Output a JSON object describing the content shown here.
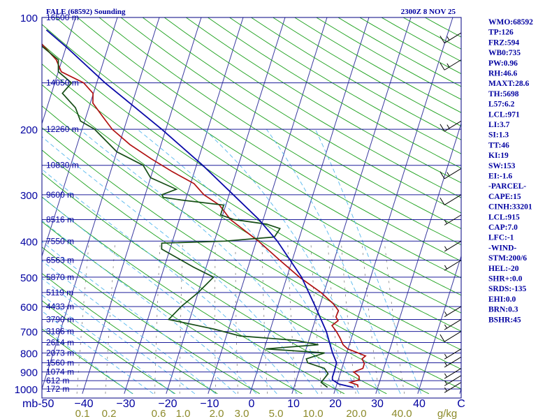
{
  "header": {
    "title": "FALE (68592) Sounding",
    "time": "2300Z  8 NOV 25"
  },
  "colors": {
    "frame": "#000080",
    "isobar": "#1d1d9a",
    "isotherm": "#3a3aa0",
    "dry_adiabat": "#1aa01a",
    "moist_adiabat": "#55b8ee",
    "mixing_ratio": "#808080",
    "temperature": "#b01010",
    "dewpoint": "#154d15",
    "parcel": "#0a0aa8",
    "mixing_ratio_label": "#8c8a2a",
    "wind_barb": "#000000",
    "text": "#0000a0"
  },
  "chart_data": {
    "type": "skew-t log-p sounding",
    "pressure_unit": "mb",
    "temperature_unit": "C",
    "mixing_ratio_unit": "g/kg",
    "xlim": [
      -50,
      50
    ],
    "ylim": [
      1000,
      100
    ],
    "pressure_ticks": [
      100,
      200,
      300,
      400,
      500,
      600,
      700,
      800,
      900,
      1000
    ],
    "temperature_ticks": [
      -50,
      -40,
      -30,
      -20,
      -10,
      0,
      10,
      20,
      30,
      40,
      50
    ],
    "temperature_tick_labels": [
      "mb-50",
      "−40",
      "−30",
      "−20",
      "−10",
      "0",
      "10",
      "20",
      "30",
      "40",
      "C"
    ],
    "mixing_ratio_labels": [
      "0.1",
      "0.2",
      "0.6",
      "1.0",
      "2.0",
      "3.0",
      "5.0",
      "10.0",
      "20.0",
      "40.0",
      "g/kg"
    ],
    "height_labels": [
      {
        "p": 100,
        "text": "16500 m"
      },
      {
        "p": 150,
        "text": "14050 m"
      },
      {
        "p": 200,
        "text": "12260 m"
      },
      {
        "p": 250,
        "text": "10830 m"
      },
      {
        "p": 300,
        "text": "9600 m"
      },
      {
        "p": 350,
        "text": "8516 m"
      },
      {
        "p": 400,
        "text": "7550 m"
      },
      {
        "p": 450,
        "text": "6563 m"
      },
      {
        "p": 500,
        "text": "5870 m"
      },
      {
        "p": 550,
        "text": "5119 m"
      },
      {
        "p": 600,
        "text": "4433 m"
      },
      {
        "p": 650,
        "text": "3790 m"
      },
      {
        "p": 700,
        "text": "3186 m"
      },
      {
        "p": 750,
        "text": "2614 m"
      },
      {
        "p": 800,
        "text": "2073 m"
      },
      {
        "p": 850,
        "text": "1560 m"
      },
      {
        "p": 900,
        "text": "1074 m"
      },
      {
        "p": 950,
        "text": "612 m"
      },
      {
        "p": 1000,
        "text": "172 m"
      }
    ],
    "series": [
      {
        "name": "temperature",
        "points": [
          [
            990,
            25.3
          ],
          [
            975,
            25.0
          ],
          [
            960,
            23.0
          ],
          [
            945,
            25.0
          ],
          [
            925,
            24.7
          ],
          [
            900,
            23.1
          ],
          [
            880,
            25.0
          ],
          [
            855,
            25.0
          ],
          [
            830,
            24.1
          ],
          [
            815,
            24.7
          ],
          [
            800,
            22.7
          ],
          [
            780,
            19.9
          ],
          [
            760,
            18.5
          ],
          [
            730,
            17.3
          ],
          [
            700,
            15.9
          ],
          [
            675,
            14.4
          ],
          [
            655,
            15.5
          ],
          [
            640,
            14.7
          ],
          [
            615,
            14.8
          ],
          [
            590,
            13.1
          ],
          [
            550,
            9.3
          ],
          [
            500,
            3.0
          ],
          [
            450,
            -3.0
          ],
          [
            400,
            -9.5
          ],
          [
            380,
            -12.7
          ],
          [
            350,
            -17.8
          ],
          [
            320,
            -21.5
          ],
          [
            300,
            -26.0
          ],
          [
            280,
            -29.2
          ],
          [
            260,
            -35.3
          ],
          [
            240,
            -41.3
          ],
          [
            220,
            -47.4
          ],
          [
            200,
            -52.8
          ],
          [
            185,
            -56.0
          ],
          [
            170,
            -59.4
          ],
          [
            160,
            -60.1
          ],
          [
            150,
            -63.1
          ],
          [
            140,
            -69.3
          ],
          [
            130,
            -71.4
          ],
          [
            115,
            -77.2
          ],
          [
            106,
            -77.6
          ],
          [
            100,
            -78.1
          ]
        ]
      },
      {
        "name": "dewpoint",
        "points": [
          [
            990,
            18.0
          ],
          [
            960,
            16.1
          ],
          [
            930,
            16.7
          ],
          [
            910,
            17.1
          ],
          [
            880,
            15.8
          ],
          [
            850,
            11.4
          ],
          [
            830,
            10.8
          ],
          [
            800,
            14.7
          ],
          [
            780,
            0.4
          ],
          [
            760,
            12.6
          ],
          [
            740,
            6.8
          ],
          [
            720,
            -6.7
          ],
          [
            690,
            -13.4
          ],
          [
            650,
            -25.0
          ],
          [
            600,
            -23.0
          ],
          [
            550,
            -20.0
          ],
          [
            500,
            -17.5
          ],
          [
            470,
            -23.0
          ],
          [
            420,
            -32.0
          ],
          [
            405,
            -32.4
          ],
          [
            400,
            -17.6
          ],
          [
            390,
            -6.0
          ],
          [
            370,
            -5.3
          ],
          [
            360,
            -8.8
          ],
          [
            350,
            -17.0
          ],
          [
            340,
            -20.5
          ],
          [
            320,
            -20.5
          ],
          [
            310,
            -31.1
          ],
          [
            305,
            -35.5
          ],
          [
            300,
            -36.0
          ],
          [
            290,
            -33.0
          ],
          [
            270,
            -40.0
          ],
          [
            250,
            -42.7
          ],
          [
            230,
            -50.0
          ],
          [
            200,
            -57.0
          ],
          [
            190,
            -61.0
          ],
          [
            175,
            -63.2
          ],
          [
            160,
            -67.4
          ],
          [
            150,
            -66.0
          ],
          [
            140,
            -70.0
          ],
          [
            130,
            -70.9
          ],
          [
            120,
            -75.6
          ],
          [
            110,
            -80.0
          ],
          [
            100,
            -81.0
          ]
        ]
      },
      {
        "name": "parcel",
        "points": [
          [
            990,
            24.2
          ],
          [
            970,
            20.5
          ],
          [
            945,
            18.6
          ],
          [
            930,
            18.4
          ],
          [
            900,
            18.4
          ],
          [
            850,
            18.3
          ],
          [
            800,
            16.6
          ],
          [
            700,
            13.5
          ],
          [
            600,
            9.0
          ],
          [
            500,
            3.5
          ],
          [
            400,
            -5.0
          ],
          [
            350,
            -11.0
          ],
          [
            300,
            -19.0
          ],
          [
            250,
            -28.5
          ],
          [
            200,
            -41.0
          ],
          [
            150,
            -58.0
          ],
          [
            120,
            -70.0
          ],
          [
            108,
            -76.0
          ]
        ]
      }
    ],
    "wind_barbs": [
      {
        "p": 110,
        "speed_kt": 15
      },
      {
        "p": 130,
        "speed_kt": 15
      },
      {
        "p": 190,
        "speed_kt": 15
      },
      {
        "p": 255,
        "speed_kt": 15
      },
      {
        "p": 300,
        "speed_kt": 10
      },
      {
        "p": 340,
        "speed_kt": 5
      },
      {
        "p": 400,
        "speed_kt": 5
      },
      {
        "p": 450,
        "speed_kt": 5
      },
      {
        "p": 600,
        "speed_kt": 5
      },
      {
        "p": 650,
        "speed_kt": 5
      },
      {
        "p": 700,
        "speed_kt": 10
      },
      {
        "p": 780,
        "speed_kt": 5
      },
      {
        "p": 820,
        "speed_kt": 5
      },
      {
        "p": 880,
        "speed_kt": 5
      },
      {
        "p": 920,
        "speed_kt": 5
      },
      {
        "p": 960,
        "speed_kt": 5
      }
    ]
  },
  "indices": [
    "WMO:68592",
    "TP:126",
    "FRZ:594",
    "WB0:735",
    "PW:0.96",
    "RH:46.6",
    "MAXT:28.6",
    "TH:5698",
    "L57:6.2",
    "LCL:971",
    "LI:3.7",
    "SI:1.3",
    "TT:46",
    "KI:19",
    "SW:153",
    "EI:-1.6",
    "-PARCEL-",
    "CAPE:15",
    "CINH:33201",
    "LCL:915",
    "CAP:7.0",
    "LFC:-1",
    "-WIND-",
    "STM:200/6",
    "HEL:-20",
    "SHR+:0.0",
    "SRDS:-135",
    "EHI:0.0",
    "BRN:0.3",
    "BSHR:45"
  ]
}
